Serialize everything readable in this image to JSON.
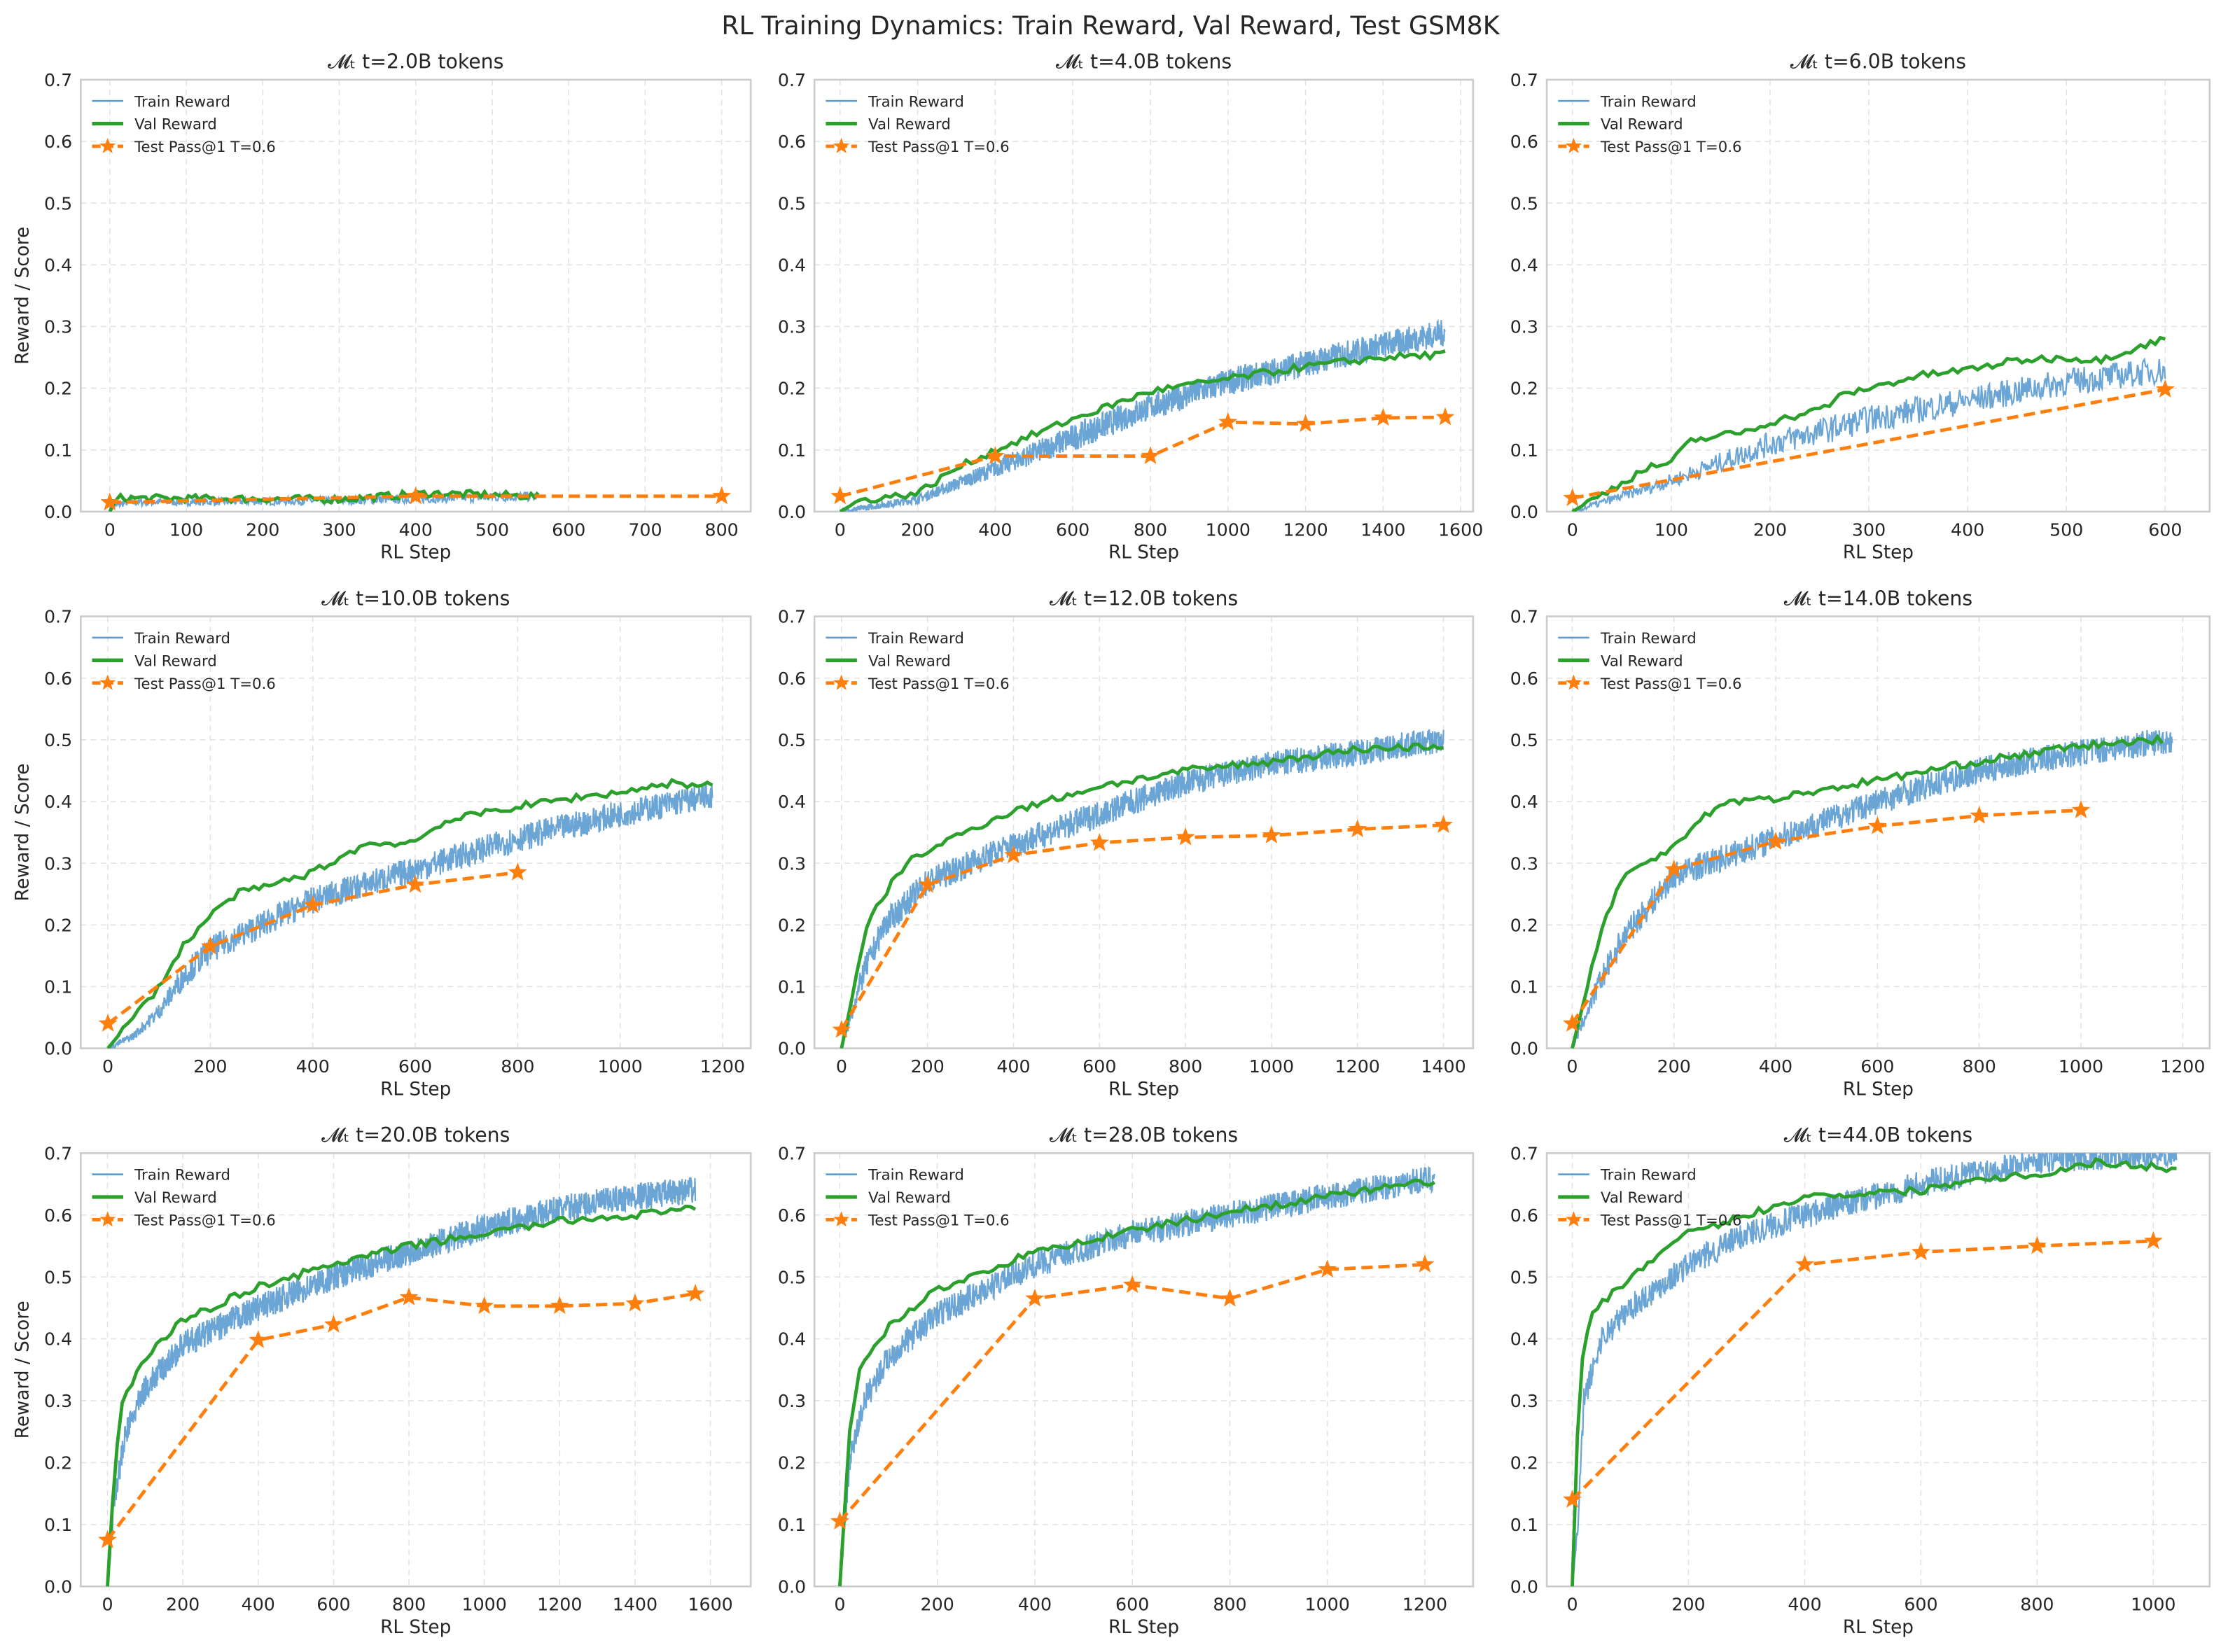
{
  "title": "RL Training Dynamics: Train Reward, Val Reward, Test GSM8K",
  "colors": {
    "train": "#5b9bd0",
    "val": "#2ca02c",
    "test": "#ff7f0e",
    "grid": "#e3e3e3",
    "frame": "#cccccc"
  },
  "legend": {
    "train": "Train Reward",
    "val": "Val Reward",
    "test": "Test Pass@1 T=0.6",
    "placement": "upper-left"
  },
  "chart_data": [
    {
      "type": "line",
      "title": "𝓜ₜ t=2.0B tokens",
      "xlabel": "RL Step",
      "ylabel": "Reward / Score",
      "xlim": [
        -38,
        838
      ],
      "ylim": [
        0,
        0.7
      ],
      "xticks": [
        0,
        100,
        200,
        300,
        400,
        500,
        600,
        700,
        800
      ],
      "grid": true,
      "train": [
        [
          0,
          0.005
        ],
        [
          20,
          0.015
        ],
        [
          300,
          0.018
        ],
        [
          560,
          0.025
        ]
      ],
      "val": [
        [
          0,
          0
        ],
        [
          10,
          0.022
        ],
        [
          300,
          0.02
        ],
        [
          420,
          0.03
        ],
        [
          560,
          0.025
        ]
      ],
      "test": [
        [
          0,
          0.015
        ],
        [
          400,
          0.025
        ],
        [
          800,
          0.025
        ]
      ]
    },
    {
      "type": "line",
      "title": "𝓜ₜ t=4.0B tokens",
      "xlabel": "RL Step",
      "ylabel": "",
      "xlim": [
        -66,
        1632
      ],
      "ylim": [
        0,
        0.7
      ],
      "xticks": [
        0,
        200,
        400,
        600,
        800,
        1000,
        1200,
        1400,
        1600
      ],
      "grid": true,
      "train": [
        [
          0,
          0
        ],
        [
          200,
          0.02
        ],
        [
          400,
          0.07
        ],
        [
          600,
          0.12
        ],
        [
          800,
          0.17
        ],
        [
          1000,
          0.21
        ],
        [
          1200,
          0.24
        ],
        [
          1400,
          0.27
        ],
        [
          1560,
          0.29
        ]
      ],
      "val": [
        [
          0,
          0
        ],
        [
          50,
          0.018
        ],
        [
          200,
          0.03
        ],
        [
          300,
          0.07
        ],
        [
          400,
          0.1
        ],
        [
          600,
          0.15
        ],
        [
          800,
          0.195
        ],
        [
          1000,
          0.215
        ],
        [
          1200,
          0.235
        ],
        [
          1400,
          0.25
        ],
        [
          1560,
          0.255
        ]
      ],
      "test": [
        [
          0,
          0.025
        ],
        [
          400,
          0.09
        ],
        [
          800,
          0.09
        ],
        [
          1000,
          0.145
        ],
        [
          1200,
          0.142
        ],
        [
          1400,
          0.152
        ],
        [
          1560,
          0.153
        ]
      ]
    },
    {
      "type": "line",
      "title": "𝓜ₜ t=6.0B tokens",
      "xlabel": "RL Step",
      "ylabel": "",
      "xlim": [
        -26,
        645
      ],
      "ylim": [
        0,
        0.7
      ],
      "xticks": [
        0,
        100,
        200,
        300,
        400,
        500,
        600
      ],
      "grid": true,
      "train": [
        [
          0,
          0
        ],
        [
          100,
          0.05
        ],
        [
          200,
          0.11
        ],
        [
          300,
          0.15
        ],
        [
          400,
          0.18
        ],
        [
          500,
          0.21
        ],
        [
          600,
          0.23
        ]
      ],
      "val": [
        [
          0,
          0
        ],
        [
          75,
          0.07
        ],
        [
          100,
          0.08
        ],
        [
          120,
          0.115
        ],
        [
          175,
          0.13
        ],
        [
          200,
          0.145
        ],
        [
          250,
          0.165
        ],
        [
          275,
          0.19
        ],
        [
          300,
          0.2
        ],
        [
          350,
          0.22
        ],
        [
          400,
          0.23
        ],
        [
          450,
          0.245
        ],
        [
          500,
          0.25
        ],
        [
          530,
          0.245
        ],
        [
          600,
          0.28
        ]
      ],
      "test": [
        [
          0,
          0.022
        ],
        [
          600,
          0.198
        ]
      ]
    },
    {
      "type": "line",
      "title": "𝓜ₜ t=10.0B tokens",
      "xlabel": "RL Step",
      "ylabel": "Reward / Score",
      "xlim": [
        -53,
        1255
      ],
      "ylim": [
        0,
        0.7
      ],
      "xticks": [
        0,
        200,
        400,
        600,
        800,
        1000,
        1200
      ],
      "grid": true,
      "train": [
        [
          0,
          0
        ],
        [
          50,
          0.02
        ],
        [
          100,
          0.06
        ],
        [
          150,
          0.12
        ],
        [
          200,
          0.16
        ],
        [
          300,
          0.2
        ],
        [
          400,
          0.24
        ],
        [
          600,
          0.29
        ],
        [
          800,
          0.34
        ],
        [
          1000,
          0.38
        ],
        [
          1180,
          0.41
        ]
      ],
      "val": [
        [
          0,
          0
        ],
        [
          100,
          0.1
        ],
        [
          150,
          0.17
        ],
        [
          200,
          0.215
        ],
        [
          250,
          0.25
        ],
        [
          300,
          0.26
        ],
        [
          400,
          0.285
        ],
        [
          500,
          0.33
        ],
        [
          600,
          0.335
        ],
        [
          650,
          0.365
        ],
        [
          750,
          0.385
        ],
        [
          900,
          0.405
        ],
        [
          1000,
          0.415
        ],
        [
          1100,
          0.43
        ],
        [
          1180,
          0.425
        ]
      ],
      "test": [
        [
          0,
          0.04
        ],
        [
          200,
          0.165
        ],
        [
          400,
          0.232
        ],
        [
          600,
          0.265
        ],
        [
          800,
          0.285
        ]
      ]
    },
    {
      "type": "line",
      "title": "𝓜ₜ t=12.0B tokens",
      "xlabel": "RL Step",
      "ylabel": "",
      "xlim": [
        -63,
        1469
      ],
      "ylim": [
        0,
        0.7
      ],
      "xticks": [
        0,
        200,
        400,
        600,
        800,
        1000,
        1200,
        1400
      ],
      "grid": true,
      "train": [
        [
          0,
          0
        ],
        [
          50,
          0.12
        ],
        [
          100,
          0.2
        ],
        [
          200,
          0.27
        ],
        [
          400,
          0.33
        ],
        [
          600,
          0.38
        ],
        [
          800,
          0.43
        ],
        [
          1000,
          0.46
        ],
        [
          1200,
          0.48
        ],
        [
          1400,
          0.5
        ]
      ],
      "val": [
        [
          0,
          0
        ],
        [
          30,
          0.1
        ],
        [
          60,
          0.2
        ],
        [
          100,
          0.25
        ],
        [
          150,
          0.3
        ],
        [
          200,
          0.32
        ],
        [
          300,
          0.355
        ],
        [
          400,
          0.385
        ],
        [
          500,
          0.405
        ],
        [
          600,
          0.425
        ],
        [
          800,
          0.45
        ],
        [
          1000,
          0.465
        ],
        [
          1200,
          0.485
        ],
        [
          1400,
          0.49
        ]
      ],
      "test": [
        [
          0,
          0.03
        ],
        [
          200,
          0.265
        ],
        [
          400,
          0.313
        ],
        [
          600,
          0.333
        ],
        [
          800,
          0.342
        ],
        [
          1000,
          0.345
        ],
        [
          1200,
          0.355
        ],
        [
          1400,
          0.362
        ]
      ]
    },
    {
      "type": "line",
      "title": "𝓜ₜ t=14.0B tokens",
      "xlabel": "RL Step",
      "ylabel": "",
      "xlim": [
        -50,
        1253
      ],
      "ylim": [
        0,
        0.7
      ],
      "xticks": [
        0,
        200,
        400,
        600,
        800,
        1000,
        1200
      ],
      "grid": true,
      "train": [
        [
          0,
          0
        ],
        [
          50,
          0.1
        ],
        [
          100,
          0.18
        ],
        [
          200,
          0.28
        ],
        [
          400,
          0.34
        ],
        [
          600,
          0.4
        ],
        [
          800,
          0.45
        ],
        [
          1000,
          0.48
        ],
        [
          1180,
          0.5
        ]
      ],
      "val": [
        [
          0,
          0
        ],
        [
          30,
          0.1
        ],
        [
          60,
          0.2
        ],
        [
          100,
          0.28
        ],
        [
          150,
          0.3
        ],
        [
          200,
          0.33
        ],
        [
          250,
          0.37
        ],
        [
          300,
          0.4
        ],
        [
          400,
          0.405
        ],
        [
          500,
          0.42
        ],
        [
          600,
          0.435
        ],
        [
          800,
          0.465
        ],
        [
          1000,
          0.49
        ],
        [
          1160,
          0.5
        ]
      ],
      "test": [
        [
          0,
          0.04
        ],
        [
          200,
          0.29
        ],
        [
          400,
          0.335
        ],
        [
          600,
          0.36
        ],
        [
          800,
          0.377
        ],
        [
          1000,
          0.386
        ]
      ]
    },
    {
      "type": "line",
      "title": "𝓜ₜ t=20.0B tokens",
      "xlabel": "RL Step",
      "ylabel": "Reward / Score",
      "xlim": [
        -71,
        1707
      ],
      "ylim": [
        0,
        0.7
      ],
      "xticks": [
        0,
        200,
        400,
        600,
        800,
        1000,
        1200,
        1400,
        1600
      ],
      "grid": true,
      "train": [
        [
          0,
          0
        ],
        [
          20,
          0.15
        ],
        [
          50,
          0.25
        ],
        [
          100,
          0.32
        ],
        [
          200,
          0.39
        ],
        [
          400,
          0.45
        ],
        [
          600,
          0.5
        ],
        [
          800,
          0.54
        ],
        [
          1000,
          0.58
        ],
        [
          1200,
          0.61
        ],
        [
          1400,
          0.63
        ],
        [
          1560,
          0.64
        ]
      ],
      "val": [
        [
          0,
          0
        ],
        [
          20,
          0.2
        ],
        [
          40,
          0.3
        ],
        [
          100,
          0.37
        ],
        [
          200,
          0.43
        ],
        [
          400,
          0.485
        ],
        [
          600,
          0.52
        ],
        [
          800,
          0.55
        ],
        [
          1000,
          0.57
        ],
        [
          1200,
          0.59
        ],
        [
          1400,
          0.6
        ],
        [
          1560,
          0.61
        ]
      ],
      "test": [
        [
          0,
          0.075
        ],
        [
          400,
          0.398
        ],
        [
          600,
          0.423
        ],
        [
          800,
          0.467
        ],
        [
          1000,
          0.453
        ],
        [
          1200,
          0.453
        ],
        [
          1400,
          0.457
        ],
        [
          1560,
          0.473
        ]
      ]
    },
    {
      "type": "line",
      "title": "𝓜ₜ t=28.0B tokens",
      "xlabel": "RL Step",
      "ylabel": "",
      "xlim": [
        -52,
        1299
      ],
      "ylim": [
        0,
        0.7
      ],
      "xticks": [
        0,
        200,
        400,
        600,
        800,
        1000,
        1200
      ],
      "grid": true,
      "train": [
        [
          0,
          0
        ],
        [
          20,
          0.2
        ],
        [
          50,
          0.3
        ],
        [
          100,
          0.37
        ],
        [
          200,
          0.44
        ],
        [
          400,
          0.52
        ],
        [
          600,
          0.57
        ],
        [
          800,
          0.6
        ],
        [
          1000,
          0.63
        ],
        [
          1220,
          0.66
        ]
      ],
      "val": [
        [
          0,
          0
        ],
        [
          20,
          0.25
        ],
        [
          40,
          0.35
        ],
        [
          100,
          0.42
        ],
        [
          200,
          0.48
        ],
        [
          400,
          0.54
        ],
        [
          600,
          0.575
        ],
        [
          800,
          0.605
        ],
        [
          1000,
          0.63
        ],
        [
          1220,
          0.655
        ]
      ],
      "test": [
        [
          0,
          0.105
        ],
        [
          400,
          0.465
        ],
        [
          600,
          0.487
        ],
        [
          800,
          0.465
        ],
        [
          1000,
          0.512
        ],
        [
          1200,
          0.52
        ]
      ]
    },
    {
      "type": "line",
      "title": "𝓜ₜ t=44.0B tokens",
      "xlabel": "RL Step",
      "ylabel": "",
      "xlim": [
        -44,
        1097
      ],
      "ylim": [
        0,
        0.7
      ],
      "xticks": [
        0,
        200,
        400,
        600,
        800,
        1000
      ],
      "grid": true,
      "train": [
        [
          0,
          0
        ],
        [
          10,
          0.1
        ],
        [
          20,
          0.3
        ],
        [
          50,
          0.4
        ],
        [
          100,
          0.45
        ],
        [
          200,
          0.52
        ],
        [
          300,
          0.57
        ],
        [
          400,
          0.6
        ],
        [
          600,
          0.65
        ],
        [
          800,
          0.69
        ],
        [
          1040,
          0.7
        ]
      ],
      "val": [
        [
          0,
          0
        ],
        [
          10,
          0.28
        ],
        [
          20,
          0.4
        ],
        [
          40,
          0.45
        ],
        [
          100,
          0.5
        ],
        [
          200,
          0.57
        ],
        [
          300,
          0.6
        ],
        [
          400,
          0.63
        ],
        [
          600,
          0.64
        ],
        [
          700,
          0.66
        ],
        [
          800,
          0.665
        ],
        [
          900,
          0.685
        ],
        [
          1040,
          0.675
        ]
      ],
      "test": [
        [
          0,
          0.14
        ],
        [
          400,
          0.52
        ],
        [
          600,
          0.54
        ],
        [
          800,
          0.55
        ],
        [
          1000,
          0.558
        ]
      ]
    }
  ]
}
